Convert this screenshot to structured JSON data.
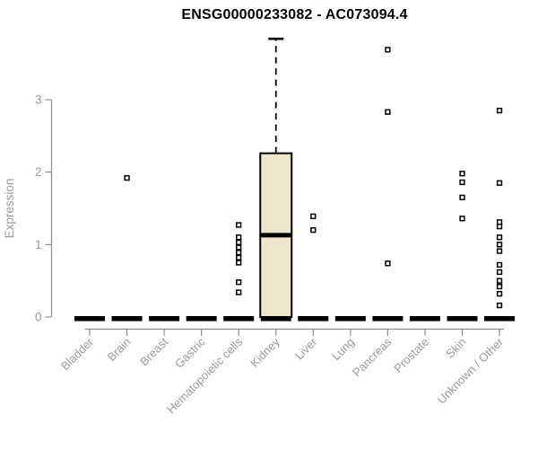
{
  "chart_data": {
    "type": "boxplot",
    "title": "ENSG00000233082 - AC073094.4",
    "xlabel": "",
    "ylabel": "Expression",
    "ylim": [
      0,
      3.92
    ],
    "yticks": [
      "0",
      "1",
      "2",
      "3"
    ],
    "grid": false,
    "legend": false,
    "outlier_marker": "open-square",
    "categories": [
      "Bladder",
      "Brain",
      "Breast",
      "Gastric",
      "Hematopoietic cells",
      "Kidney",
      "Liver",
      "Lung",
      "Pancreas",
      "Prostate",
      "Skin",
      "Unknown / Other"
    ],
    "series": [
      {
        "category": "Bladder",
        "whisker_low": 0,
        "q1": 0,
        "median": 0,
        "q3": 0,
        "whisker_high": 0,
        "outliers": []
      },
      {
        "category": "Brain",
        "whisker_low": 0,
        "q1": 0,
        "median": 0,
        "q3": 0,
        "whisker_high": 0,
        "outliers": [
          1.92
        ]
      },
      {
        "category": "Breast",
        "whisker_low": 0,
        "q1": 0,
        "median": 0,
        "q3": 0,
        "whisker_high": 0,
        "outliers": []
      },
      {
        "category": "Gastric",
        "whisker_low": 0,
        "q1": 0,
        "median": 0,
        "q3": 0,
        "whisker_high": 0,
        "outliers": []
      },
      {
        "category": "Hematopoietic cells",
        "whisker_low": 0,
        "q1": 0,
        "median": 0,
        "q3": 0,
        "whisker_high": 0,
        "outliers": [
          1.27,
          1.1,
          1.03,
          0.96,
          0.89,
          0.82,
          0.75,
          0.48,
          0.34
        ]
      },
      {
        "category": "Kidney",
        "whisker_low": 0,
        "q1": 0,
        "median": 1.13,
        "q3": 2.26,
        "whisker_high": 3.84,
        "outliers": []
      },
      {
        "category": "Liver",
        "whisker_low": 0,
        "q1": 0,
        "median": 0,
        "q3": 0,
        "whisker_high": 0,
        "outliers": [
          1.39,
          1.2
        ]
      },
      {
        "category": "Lung",
        "whisker_low": 0,
        "q1": 0,
        "median": 0,
        "q3": 0,
        "whisker_high": 0,
        "outliers": []
      },
      {
        "category": "Pancreas",
        "whisker_low": 0,
        "q1": 0,
        "median": 0,
        "q3": 0,
        "whisker_high": 0,
        "outliers": [
          3.69,
          2.83,
          0.74
        ]
      },
      {
        "category": "Prostate",
        "whisker_low": 0,
        "q1": 0,
        "median": 0,
        "q3": 0,
        "whisker_high": 0,
        "outliers": []
      },
      {
        "category": "Skin",
        "whisker_low": 0,
        "q1": 0,
        "median": 0,
        "q3": 0,
        "whisker_high": 0,
        "outliers": [
          1.98,
          1.86,
          1.65,
          1.36
        ]
      },
      {
        "category": "Unknown / Other",
        "whisker_low": 0,
        "q1": 0,
        "median": 0,
        "q3": 0,
        "whisker_high": 0,
        "outliers": [
          2.85,
          1.85,
          1.31,
          1.25,
          1.1,
          1.0,
          0.91,
          0.72,
          0.62,
          0.5,
          0.42,
          0.32,
          0.16
        ]
      }
    ],
    "colors": {
      "box_fill": "#EDE6CD",
      "box_stroke": "#000000",
      "median": "#000000",
      "point": "#000000",
      "axis": "#8C8C8C",
      "tick_label": "#9A9A9A",
      "title": "#000000",
      "background": "#FFFFFF"
    }
  }
}
